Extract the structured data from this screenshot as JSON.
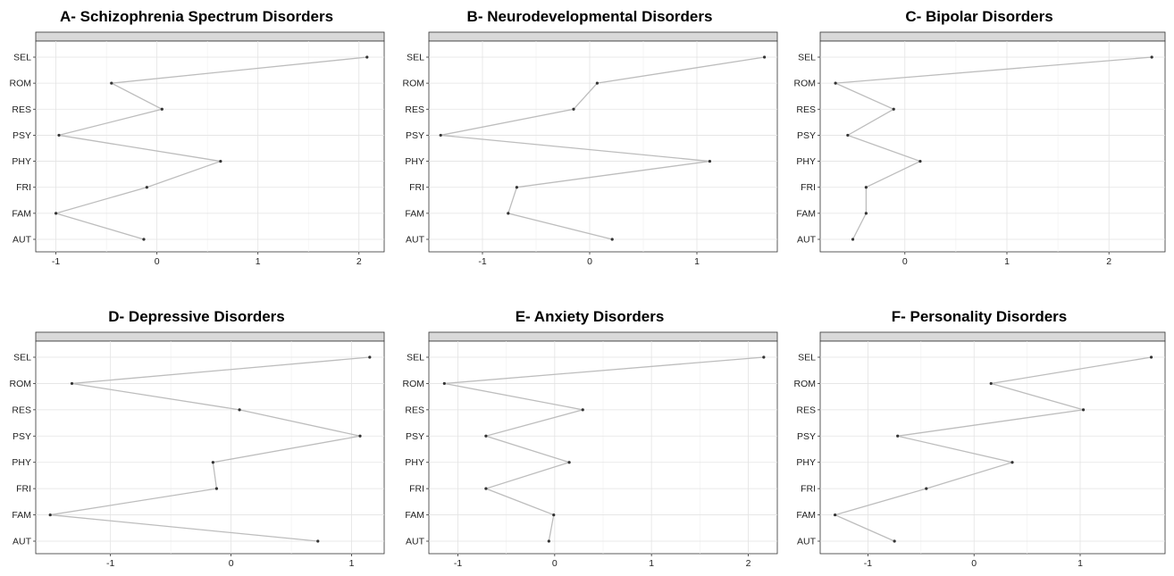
{
  "chart_data": [
    {
      "type": "line",
      "title": "A- Schizophrenia Spectrum Disorders",
      "categories": [
        "SEL",
        "ROM",
        "RES",
        "PSY",
        "PHY",
        "FRI",
        "FAM",
        "AUT"
      ],
      "values": [
        2.08,
        -0.45,
        0.05,
        -0.97,
        0.63,
        -0.1,
        -1.0,
        -0.13
      ],
      "xlim": [
        -1.2,
        2.25
      ],
      "xticks": [
        -1,
        0,
        1,
        2
      ],
      "xtick_labels": [
        "-1",
        "0",
        "1",
        "2"
      ],
      "grid": true
    },
    {
      "type": "line",
      "title": "B- Neurodevelopmental Disorders",
      "categories": [
        "SEL",
        "ROM",
        "RES",
        "PSY",
        "PHY",
        "FRI",
        "FAM",
        "AUT"
      ],
      "values": [
        1.63,
        0.07,
        -0.15,
        -1.39,
        1.12,
        -0.68,
        -0.76,
        0.21
      ],
      "xlim": [
        -1.5,
        1.75
      ],
      "xticks": [
        -1,
        0,
        1
      ],
      "xtick_labels": [
        "-1",
        "0",
        "1"
      ],
      "grid": true
    },
    {
      "type": "line",
      "title": "C- Bipolar Disorders",
      "categories": [
        "SEL",
        "ROM",
        "RES",
        "PSY",
        "PHY",
        "FRI",
        "FAM",
        "AUT"
      ],
      "values": [
        2.42,
        -0.68,
        -0.11,
        -0.56,
        0.15,
        -0.38,
        -0.38,
        -0.51
      ],
      "xlim": [
        -0.83,
        2.55
      ],
      "xticks": [
        0,
        1,
        2
      ],
      "xtick_labels": [
        "0",
        "1",
        "2"
      ],
      "grid": true
    },
    {
      "type": "line",
      "title": "D- Depressive Disorders",
      "categories": [
        "SEL",
        "ROM",
        "RES",
        "PSY",
        "PHY",
        "FRI",
        "FAM",
        "AUT"
      ],
      "values": [
        1.15,
        -1.32,
        0.07,
        1.07,
        -0.15,
        -0.12,
        -1.5,
        0.72
      ],
      "xlim": [
        -1.62,
        1.27
      ],
      "xticks": [
        -1,
        0,
        1
      ],
      "xtick_labels": [
        "-1",
        "0",
        "1"
      ],
      "grid": true
    },
    {
      "type": "line",
      "title": "E- Anxiety Disorders",
      "categories": [
        "SEL",
        "ROM",
        "RES",
        "PSY",
        "PHY",
        "FRI",
        "FAM",
        "AUT"
      ],
      "values": [
        2.16,
        -1.14,
        0.29,
        -0.71,
        0.15,
        -0.71,
        -0.01,
        -0.06
      ],
      "xlim": [
        -1.3,
        2.3
      ],
      "xticks": [
        -1,
        0,
        1,
        2
      ],
      "xtick_labels": [
        "-1",
        "0",
        "1",
        "2"
      ],
      "grid": true
    },
    {
      "type": "line",
      "title": "F- Personality Disorders",
      "categories": [
        "SEL",
        "ROM",
        "RES",
        "PSY",
        "PHY",
        "FRI",
        "FAM",
        "AUT"
      ],
      "values": [
        1.67,
        0.16,
        1.03,
        -0.72,
        0.36,
        -0.45,
        -1.31,
        -0.75
      ],
      "xlim": [
        -1.45,
        1.8
      ],
      "xticks": [
        -1,
        0,
        1
      ],
      "xtick_labels": [
        "-1",
        "0",
        "1"
      ],
      "grid": true
    }
  ]
}
